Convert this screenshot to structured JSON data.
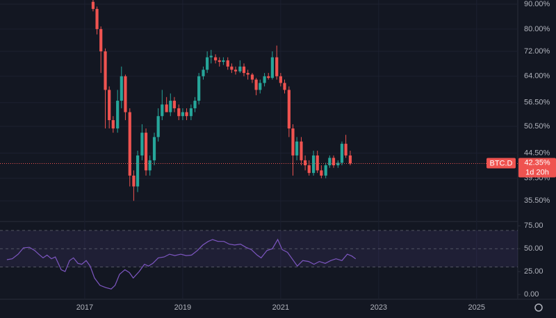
{
  "chart_data": [
    {
      "type": "candlestick",
      "symbol": "BTC.D",
      "countdown": "1d 20h",
      "last_price": {
        "value": 42.35,
        "label": "42.35%"
      },
      "up_color": "#26a69a",
      "down_color": "#ef5350",
      "log_scale": true,
      "grid": true,
      "xlim": [
        2015.27,
        2025.84
      ],
      "xticks": [
        2017,
        2019,
        2021,
        2023,
        2025
      ],
      "ylim": [
        32.3,
        91.8
      ],
      "yticks": [
        {
          "value": 35.5,
          "label": "35.50%"
        },
        {
          "value": 39.5,
          "label": "39.50%"
        },
        {
          "value": 44.5,
          "label": "44.50%"
        },
        {
          "value": 50.5,
          "label": "50.50%"
        },
        {
          "value": 56.5,
          "label": "56.50%"
        },
        {
          "value": 64,
          "label": "64.00%"
        },
        {
          "value": 72,
          "label": "72.00%"
        },
        {
          "value": 80,
          "label": "80.00%"
        },
        {
          "value": 90,
          "label": "90.00%"
        }
      ],
      "x": [
        2017.17,
        2017.25,
        2017.33,
        2017.42,
        2017.5,
        2017.58,
        2017.67,
        2017.75,
        2017.83,
        2017.92,
        2018.0,
        2018.08,
        2018.17,
        2018.25,
        2018.33,
        2018.42,
        2018.5,
        2018.58,
        2018.67,
        2018.75,
        2018.83,
        2018.92,
        2019.0,
        2019.08,
        2019.17,
        2019.25,
        2019.33,
        2019.42,
        2019.5,
        2019.58,
        2019.67,
        2019.75,
        2019.83,
        2019.92,
        2020.0,
        2020.08,
        2020.17,
        2020.25,
        2020.33,
        2020.42,
        2020.5,
        2020.58,
        2020.67,
        2020.75,
        2020.83,
        2020.92,
        2021.0,
        2021.08,
        2021.17,
        2021.25,
        2021.33,
        2021.42,
        2021.5,
        2021.58,
        2021.67,
        2021.75,
        2021.83,
        2021.92,
        2022.0,
        2022.08,
        2022.17,
        2022.25,
        2022.33,
        2022.42
      ],
      "open": [
        91,
        88,
        80,
        72,
        60,
        52,
        50,
        57,
        64,
        54,
        40,
        38,
        44,
        49,
        41,
        43,
        48,
        53,
        56,
        54,
        57,
        55,
        53,
        54,
        53,
        55,
        57,
        64,
        66,
        70,
        70,
        69,
        68.5,
        69,
        67,
        66,
        65.5,
        67,
        65,
        64.5,
        63,
        60,
        62,
        64,
        63.5,
        70,
        64,
        62,
        60,
        50,
        44,
        47,
        43,
        42,
        40.5,
        44,
        41,
        40,
        42,
        43.5,
        42,
        42.5,
        46.5,
        44
      ],
      "high": [
        91.8,
        89,
        81,
        73,
        61,
        53,
        60,
        67,
        64.5,
        55,
        41,
        45,
        51,
        50,
        44,
        49,
        55,
        60,
        58,
        59,
        58,
        56,
        55,
        55,
        56,
        58,
        65,
        67,
        72,
        72.5,
        71,
        70,
        70,
        70,
        68,
        67,
        69,
        68,
        66,
        65,
        63.5,
        63,
        65,
        65,
        72,
        74,
        65,
        63,
        61,
        51,
        48,
        48,
        44,
        43,
        45,
        45,
        42,
        42.5,
        44,
        44,
        43,
        47,
        48.5,
        45
      ],
      "low": [
        87,
        78,
        65,
        50,
        50,
        49,
        49,
        55,
        52,
        38,
        35.5,
        37,
        43,
        40,
        40,
        42,
        47,
        52,
        54,
        53,
        54,
        52,
        52,
        52,
        52,
        54,
        56,
        63,
        65,
        68,
        68,
        67,
        67.5,
        66,
        65,
        64.5,
        65,
        64,
        63,
        62,
        58.5,
        59,
        61,
        63,
        63,
        63,
        61,
        59,
        48,
        40,
        43,
        42,
        41,
        40,
        40,
        40.5,
        39.5,
        39.5,
        41.5,
        41.5,
        41.5,
        42,
        43.5,
        42
      ],
      "close": [
        88,
        80,
        72,
        60,
        52,
        50,
        57,
        64,
        54,
        40,
        38,
        44,
        49,
        41,
        43,
        48,
        53,
        56,
        54,
        57,
        55,
        53,
        54,
        53,
        55,
        57,
        64,
        66,
        70,
        70.5,
        69,
        68.5,
        69,
        67,
        66,
        65.5,
        67,
        65,
        64.5,
        63,
        60,
        62,
        64,
        63.5,
        70,
        64,
        62,
        60,
        50,
        44,
        47,
        43,
        42,
        40.5,
        44,
        41,
        40,
        42,
        43.5,
        42,
        42.5,
        46.5,
        44,
        42.35
      ]
    },
    {
      "type": "line",
      "color": "#7e57c2",
      "band": [
        30,
        70
      ],
      "midline": 50,
      "xlim": [
        2015.27,
        2025.84
      ],
      "ylim": [
        -4.5,
        79
      ],
      "yticks": [
        {
          "value": 0,
          "label": "0.00"
        },
        {
          "value": 25,
          "label": "25.00"
        },
        {
          "value": 50,
          "label": "50.00"
        },
        {
          "value": 75,
          "label": "75.00"
        }
      ],
      "x": [
        2015.41,
        2015.52,
        2015.64,
        2015.75,
        2015.87,
        2015.98,
        2016.06,
        2016.15,
        2016.23,
        2016.32,
        2016.4,
        2016.52,
        2016.6,
        2016.69,
        2016.77,
        2016.86,
        2016.94,
        2017.03,
        2017.11,
        2017.2,
        2017.31,
        2017.43,
        2017.54,
        2017.62,
        2017.71,
        2017.82,
        2017.91,
        2017.99,
        2018.11,
        2018.22,
        2018.3,
        2018.39,
        2018.5,
        2018.62,
        2018.73,
        2018.84,
        2018.96,
        2019.07,
        2019.18,
        2019.3,
        2019.41,
        2019.52,
        2019.61,
        2019.72,
        2019.84,
        2019.95,
        2020.06,
        2020.18,
        2020.29,
        2020.4,
        2020.52,
        2020.6,
        2020.72,
        2020.83,
        2020.94,
        2021.03,
        2021.14,
        2021.26,
        2021.34,
        2021.45,
        2021.57,
        2021.68,
        2021.79,
        2021.91,
        2022.02,
        2022.13,
        2022.25,
        2022.36,
        2022.45,
        2022.53
      ],
      "values": [
        38,
        39,
        44,
        51,
        51.5,
        48,
        44,
        40,
        43,
        39,
        41,
        27,
        25,
        37,
        40,
        34,
        33,
        37,
        31,
        18,
        10,
        7.5,
        6,
        10,
        22,
        27,
        24,
        18,
        25,
        33,
        31,
        34,
        40,
        41,
        44,
        42.5,
        44,
        42.5,
        43,
        48,
        54,
        58,
        60,
        58,
        58,
        55,
        54,
        55,
        51.5,
        49,
        43,
        40,
        48,
        50,
        60,
        49,
        46,
        37,
        31,
        37,
        36,
        33,
        36,
        34,
        37,
        39,
        37,
        44,
        42,
        39
      ]
    }
  ]
}
